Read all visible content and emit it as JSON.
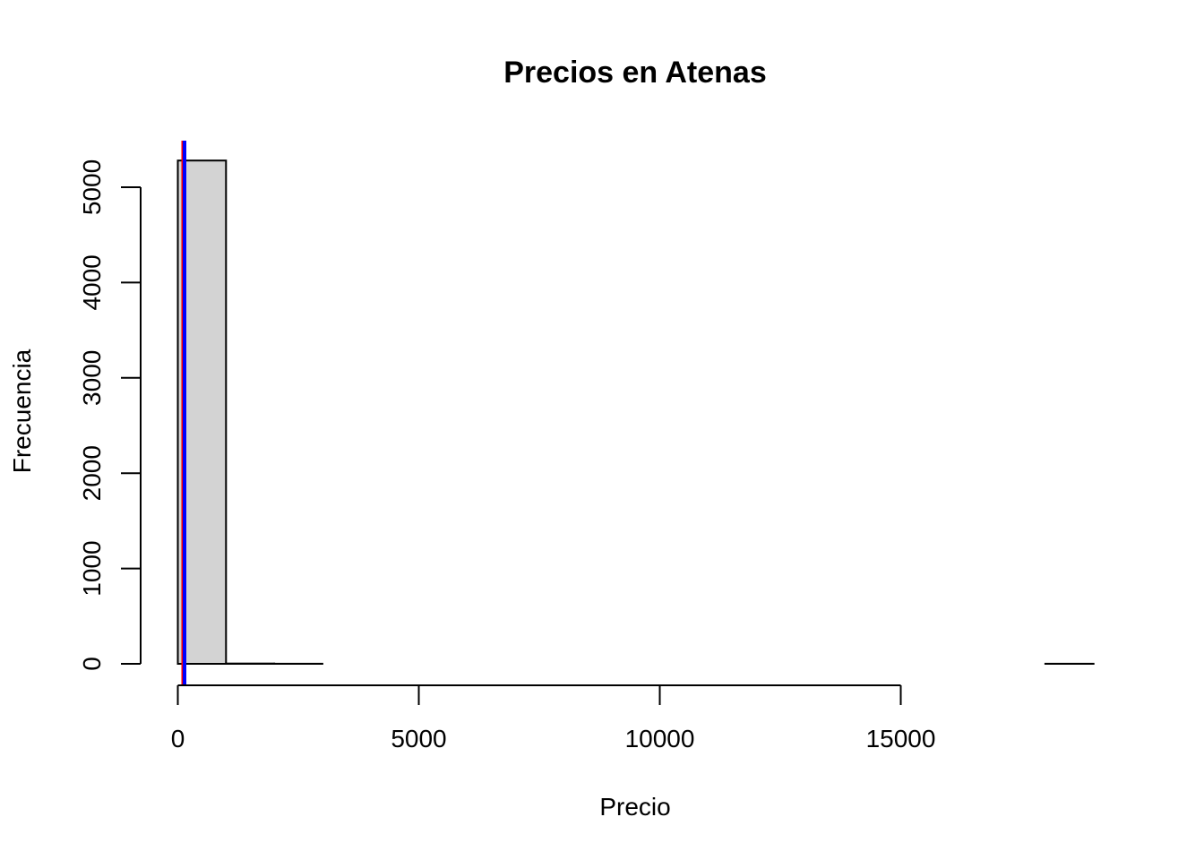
{
  "chart_data": {
    "type": "bar",
    "title": "Precios en Atenas",
    "xlabel": "Precio",
    "ylabel": "Frecuencia",
    "xlim": [
      0,
      19000
    ],
    "ylim": [
      0,
      5300
    ],
    "x_ticks": [
      0,
      5000,
      10000,
      15000
    ],
    "y_ticks": [
      0,
      1000,
      2000,
      3000,
      4000,
      5000
    ],
    "x_tick_labels": [
      "0",
      "5000",
      "10000",
      "15000"
    ],
    "y_tick_labels": [
      "0",
      "1000",
      "2000",
      "3000",
      "4000",
      "5000"
    ],
    "bins": [
      {
        "x0": 0,
        "x1": 1000,
        "count": 5280
      },
      {
        "x0": 1000,
        "x1": 2000,
        "count": 3
      },
      {
        "x0": 2000,
        "x1": 3000,
        "count": 1
      },
      {
        "x0": 3000,
        "x1": 4000,
        "count": 0
      },
      {
        "x0": 4000,
        "x1": 5000,
        "count": 0
      },
      {
        "x0": 5000,
        "x1": 6000,
        "count": 0
      },
      {
        "x0": 6000,
        "x1": 7000,
        "count": 0
      },
      {
        "x0": 7000,
        "x1": 8000,
        "count": 0
      },
      {
        "x0": 8000,
        "x1": 9000,
        "count": 0
      },
      {
        "x0": 9000,
        "x1": 10000,
        "count": 0
      },
      {
        "x0": 10000,
        "x1": 11000,
        "count": 0
      },
      {
        "x0": 11000,
        "x1": 12000,
        "count": 0
      },
      {
        "x0": 12000,
        "x1": 13000,
        "count": 0
      },
      {
        "x0": 13000,
        "x1": 14000,
        "count": 0
      },
      {
        "x0": 14000,
        "x1": 15000,
        "count": 0
      },
      {
        "x0": 15000,
        "x1": 16000,
        "count": 0
      },
      {
        "x0": 16000,
        "x1": 17000,
        "count": 0
      },
      {
        "x0": 17000,
        "x1": 18000,
        "count": 0
      },
      {
        "x0": 18000,
        "x1": 19000,
        "count": 1
      }
    ],
    "vlines": [
      {
        "x": 130,
        "color": "#FF0000"
      },
      {
        "x": 130,
        "color": "#0000FF"
      }
    ],
    "bar_fill": "#D3D3D3",
    "bar_stroke": "#000000",
    "grid": false,
    "legend": "none"
  }
}
